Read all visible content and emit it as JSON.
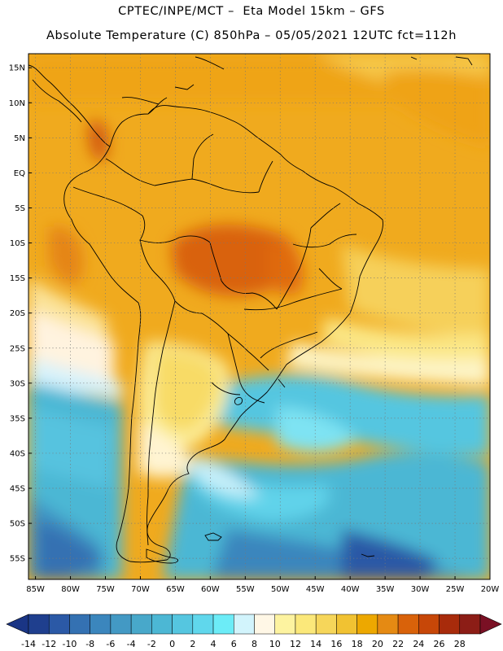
{
  "header": {
    "line1": "CPTEC/INPE/MCT –  Eta Model 15km – GFS",
    "line2": "Absolute Temperature (C) 850hPa – 05/05/2021 12UTC fct=112h"
  },
  "map": {
    "lat_labels": [
      "15N",
      "10N",
      "5N",
      "EQ",
      "5S",
      "10S",
      "15S",
      "20S",
      "25S",
      "30S",
      "35S",
      "40S",
      "45S",
      "50S",
      "55S"
    ],
    "lon_labels": [
      "85W",
      "80W",
      "75W",
      "70W",
      "65W",
      "60W",
      "55W",
      "50W",
      "45W",
      "40W",
      "35W",
      "30W",
      "25W",
      "20W"
    ],
    "lat_range": [
      17,
      -58
    ],
    "lon_range": [
      -86,
      -20
    ],
    "grid": "dotted"
  },
  "colorbar": {
    "tick_labels": [
      "-14",
      "-12",
      "-10",
      "-8",
      "-6",
      "-4",
      "-2",
      "0",
      "2",
      "4",
      "6",
      "8",
      "10",
      "12",
      "14",
      "16",
      "18",
      "20",
      "22",
      "24",
      "26",
      "28"
    ],
    "colors": [
      "#1f3f8e",
      "#2b59a6",
      "#3471b2",
      "#3b86bd",
      "#4399c4",
      "#48a8ca",
      "#4cb7d4",
      "#55c6e0",
      "#60d7ec",
      "#6cecf7",
      "#d2f4fc",
      "#fff7e6",
      "#fdf3a0",
      "#fbe87a",
      "#f6d65a",
      "#f1c232",
      "#eda800",
      "#e58a13",
      "#d9620a",
      "#c74708",
      "#a82b0b",
      "#8c1d16"
    ],
    "under_color": "#1a3585",
    "over_color": "#7a1024"
  }
}
